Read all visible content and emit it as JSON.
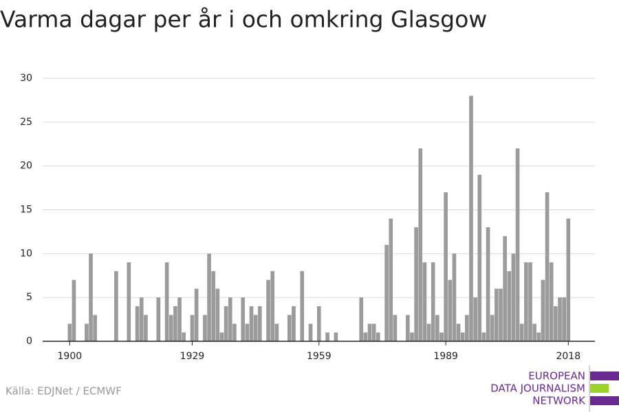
{
  "chart_data": {
    "type": "bar",
    "title": "Varma dagar per år i och omkring Glasgow",
    "source": "Källa: EDJNet / ECMWF",
    "logo": [
      "EUROPEAN",
      "DATA JOURNALISM",
      "NETWORK"
    ],
    "color": "#9b9b9b",
    "grid": true,
    "x": [
      1900,
      1901,
      1904,
      1905,
      1906,
      1911,
      1914,
      1916,
      1917,
      1918,
      1921,
      1923,
      1924,
      1925,
      1926,
      1927,
      1929,
      1930,
      1932,
      1933,
      1934,
      1935,
      1936,
      1937,
      1938,
      1939,
      1941,
      1942,
      1943,
      1944,
      1945,
      1947,
      1948,
      1949,
      1952,
      1953,
      1955,
      1957,
      1959,
      1961,
      1963,
      1969,
      1970,
      1971,
      1972,
      1973,
      1975,
      1976,
      1977,
      1980,
      1981,
      1982,
      1983,
      1984,
      1985,
      1986,
      1987,
      1988,
      1989,
      1990,
      1991,
      1992,
      1993,
      1994,
      1995,
      1996,
      1997,
      1998,
      1999,
      2000,
      2001,
      2002,
      2003,
      2004,
      2005,
      2006,
      2007,
      2008,
      2009,
      2010,
      2011,
      2012,
      2013,
      2014,
      2015,
      2016,
      2017,
      2018
    ],
    "values": [
      2,
      7,
      2,
      10,
      3,
      8,
      9,
      4,
      5,
      3,
      5,
      9,
      3,
      4,
      5,
      1,
      3,
      6,
      3,
      10,
      8,
      6,
      1,
      4,
      5,
      2,
      5,
      2,
      4,
      3,
      4,
      7,
      8,
      2,
      3,
      4,
      8,
      2,
      4,
      1,
      1,
      5,
      1,
      2,
      2,
      1,
      11,
      14,
      3,
      3,
      1,
      13,
      22,
      9,
      2,
      9,
      3,
      1,
      17,
      7,
      10,
      2,
      1,
      3,
      28,
      5,
      19,
      1,
      13,
      3,
      6,
      6,
      12,
      8,
      10,
      22,
      2,
      9,
      9,
      2,
      1,
      7,
      17,
      9,
      4,
      5,
      5,
      14
    ],
    "xlim": [
      1893.6,
      2024.3
    ],
    "xticks": [
      1900,
      1929,
      1959,
      1989,
      2018
    ],
    "ylim": [
      0,
      30
    ],
    "yticks": [
      0,
      5,
      10,
      15,
      20,
      25,
      30
    ]
  }
}
